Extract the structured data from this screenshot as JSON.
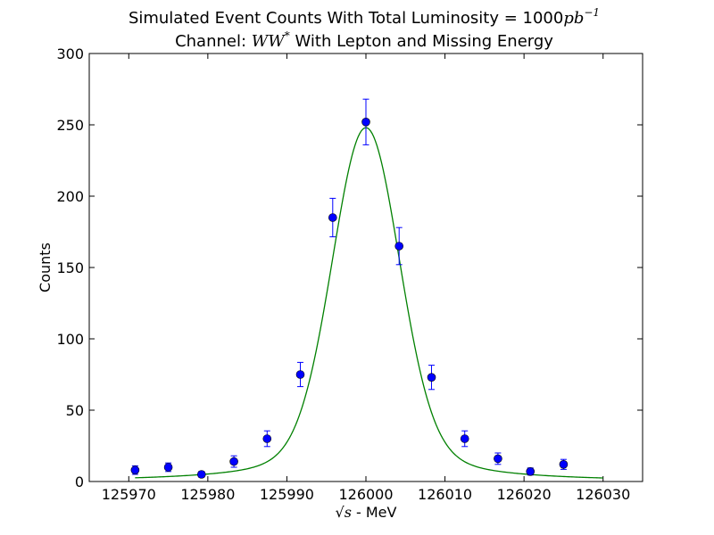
{
  "chart_data": {
    "type": "scatter",
    "title_line1": "Simulated Event Counts With Total Luminosity = 1000",
    "title_line1_math": "pb",
    "title_line1_sup": "−1",
    "title_line2_prefix": "Channel: ",
    "title_line2_math": "WW",
    "title_line2_sup": "*",
    "title_line2_suffix": " With Lepton and Missing Energy",
    "xlabel_math": "√s",
    "xlabel": " - MeV",
    "ylabel": "Counts",
    "xlim": [
      125965,
      126035
    ],
    "ylim": [
      0,
      300
    ],
    "xticks": [
      125970,
      125980,
      125990,
      126000,
      126010,
      126020,
      126030
    ],
    "yticks": [
      0,
      50,
      100,
      150,
      200,
      250,
      300
    ],
    "grid": false,
    "legend": "none",
    "points": [
      {
        "x": 125970.8,
        "y": 8,
        "err": 3
      },
      {
        "x": 125975.0,
        "y": 10,
        "err": 3
      },
      {
        "x": 125979.2,
        "y": 5,
        "err": 2
      },
      {
        "x": 125983.3,
        "y": 14,
        "err": 4
      },
      {
        "x": 125987.5,
        "y": 30,
        "err": 5.5
      },
      {
        "x": 125991.7,
        "y": 75,
        "err": 8.5
      },
      {
        "x": 125995.8,
        "y": 185,
        "err": 13.5
      },
      {
        "x": 126000.0,
        "y": 252,
        "err": 16
      },
      {
        "x": 126004.2,
        "y": 165,
        "err": 13
      },
      {
        "x": 126008.3,
        "y": 73,
        "err": 8.5
      },
      {
        "x": 126012.5,
        "y": 30,
        "err": 5.5
      },
      {
        "x": 126016.7,
        "y": 16,
        "err": 4
      },
      {
        "x": 126020.8,
        "y": 7,
        "err": 2.5
      },
      {
        "x": 126025.0,
        "y": 12,
        "err": 3.5
      }
    ],
    "fit": {
      "type": "gaussian-plus-lorentzian-tails",
      "x_range": [
        125970.8,
        126030
      ],
      "center": 126000,
      "peak": 248
    },
    "colors": {
      "points": "#0000ff",
      "errorbars": "#0000ff",
      "fit": "#008000"
    }
  }
}
